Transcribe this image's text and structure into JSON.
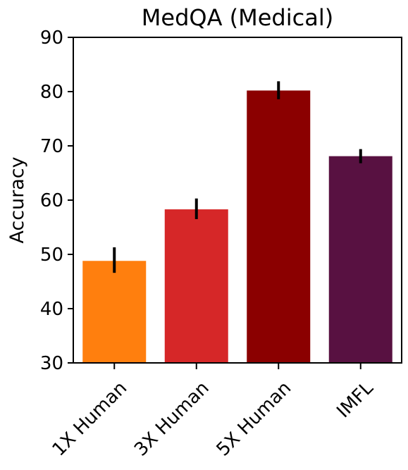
{
  "chart_data": {
    "type": "bar",
    "title": "MedQA (Medical)",
    "xlabel": "",
    "ylabel": "Accuracy",
    "categories": [
      "1X Human",
      "3X Human",
      "5X Human",
      "IMFL"
    ],
    "values": [
      48.8,
      58.3,
      80.2,
      68.1
    ],
    "error_low": [
      46.6,
      56.5,
      78.6,
      66.8
    ],
    "error_high": [
      51.3,
      60.3,
      81.9,
      69.4
    ],
    "colors": [
      "#ff7f0e",
      "#d62728",
      "#8b0000",
      "#581141"
    ],
    "ylim": [
      30,
      90
    ],
    "yticks": [
      30,
      40,
      50,
      60,
      70,
      80,
      90
    ],
    "grid": false,
    "legend": "none"
  }
}
